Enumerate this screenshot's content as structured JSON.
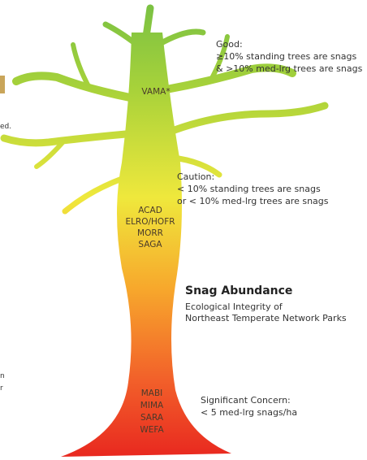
{
  "good": {
    "lines": [
      "Good:",
      "≥10% standing trees are snags",
      "& >10% med-lrg trees are snags"
    ],
    "parks": [
      "VAMA*"
    ]
  },
  "caution": {
    "lines": [
      "Caution:",
      "< 10% standing trees are snags",
      "or < 10% med-lrg trees are snags"
    ],
    "parks": [
      "ACAD",
      "ELRO/HOFR",
      "MORR",
      "SAGA"
    ]
  },
  "concern": {
    "lines": [
      "Significant Concern:",
      "< 5 med-lrg snags/ha"
    ],
    "parks": [
      "MABI",
      "MIMA",
      "SARA",
      "WEFA"
    ]
  },
  "legend": {
    "title": "Snag Abundance",
    "subtitle": [
      "Ecological Integrity of",
      "Northeast Temperate Network Parks"
    ]
  },
  "cropped_text": [
    "ed.",
    "n",
    "r"
  ]
}
